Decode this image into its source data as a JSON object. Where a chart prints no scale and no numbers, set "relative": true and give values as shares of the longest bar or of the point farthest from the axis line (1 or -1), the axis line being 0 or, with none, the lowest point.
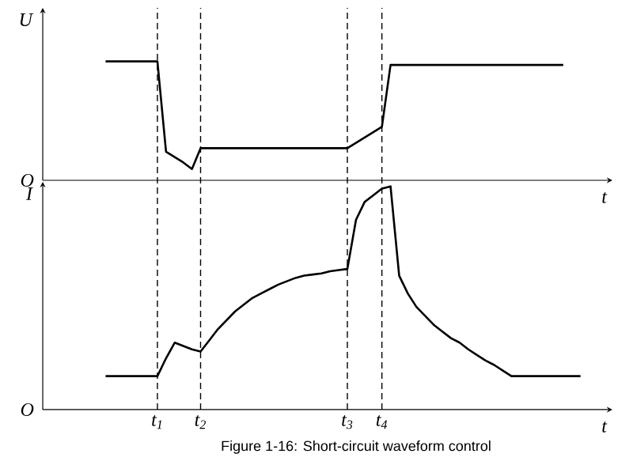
{
  "chart_data": [
    {
      "type": "line",
      "relative": true,
      "ylabel": "U",
      "xlabel": "t",
      "tick_labels": false,
      "categories": [
        null,
        null,
        null,
        null,
        null,
        null,
        null,
        null,
        null,
        null,
        null,
        null,
        null,
        null,
        null,
        null,
        null,
        null,
        null,
        null,
        null,
        null,
        null,
        null,
        null,
        null,
        null,
        null,
        null,
        null,
        null,
        null,
        null,
        null,
        null,
        null,
        null,
        null,
        null,
        null,
        null,
        null,
        null,
        null,
        null,
        null,
        null,
        null,
        null,
        null,
        null,
        null,
        null,
        null,
        null,
        null
      ],
      "series": [
        {
          "color": "#000000",
          "values": [
            1,
            1,
            1,
            1,
            1,
            1,
            1,
            0.24,
            0.195,
            0.15,
            0.095,
            0.27,
            0.27,
            0.27,
            0.27,
            0.27,
            0.27,
            0.27,
            0.27,
            0.27,
            0.27,
            0.27,
            0.27,
            0.27,
            0.27,
            0.27,
            0.27,
            0.27,
            0.27,
            0.315,
            0.36,
            0.405,
            0.45,
            0.97,
            0.97,
            0.97,
            0.97,
            0.97,
            0.97,
            0.97,
            0.97,
            0.97,
            0.97,
            0.97,
            0.97,
            0.97,
            0.97,
            0.97,
            0.97,
            0.97,
            0.97,
            0.97,
            0.97,
            0.97,
            null,
            null
          ]
        }
      ],
      "annotations": [
        "O"
      ]
    },
    {
      "type": "line",
      "relative": true,
      "ylabel": "I",
      "xlabel": "t",
      "tick_labels": "x",
      "grid": "x",
      "categories": [
        null,
        null,
        null,
        null,
        null,
        null,
        "t$_{1}$",
        null,
        null,
        null,
        null,
        "t$_{2}$",
        null,
        null,
        null,
        null,
        null,
        null,
        null,
        null,
        null,
        null,
        null,
        null,
        null,
        null,
        null,
        null,
        "t$_{3}$",
        null,
        null,
        null,
        "t$_{4}$",
        null,
        null,
        null,
        null,
        null,
        null,
        null,
        null,
        null,
        null,
        null,
        null,
        null,
        null,
        null,
        null,
        null,
        null,
        null,
        null,
        null,
        null,
        null
      ],
      "series": [
        {
          "color": "#000000",
          "values": [
            0.15,
            0.15,
            0.15,
            0.15,
            0.15,
            0.15,
            0.15,
            0.23,
            0.3,
            0.285,
            0.27,
            0.26,
            0.31,
            0.36,
            0.4,
            0.44,
            0.47,
            0.5,
            0.52,
            0.54,
            0.56,
            0.575,
            0.59,
            0.6,
            0.605,
            0.61,
            0.62,
            0.625,
            0.63,
            0.85,
            0.93,
            0.96,
            0.99,
            1,
            0.6,
            0.52,
            0.46,
            0.42,
            0.38,
            0.35,
            0.32,
            0.3,
            0.27,
            0.245,
            0.22,
            0.2,
            0.175,
            0.15,
            0.15,
            0.15,
            0.15,
            0.15,
            0.15,
            0.15,
            0.15,
            0.15
          ]
        }
      ],
      "annotations": [
        "O",
        "Figure 1-16: Short-circuit waveform control"
      ]
    }
  ]
}
